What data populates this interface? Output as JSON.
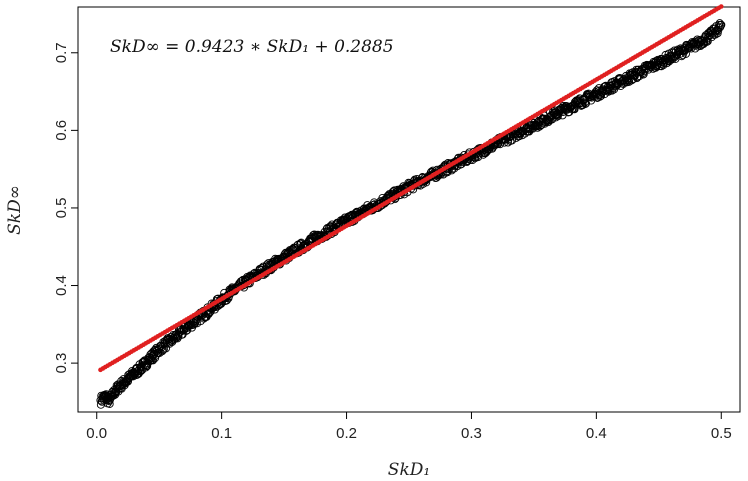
{
  "chart_data": {
    "type": "scatter",
    "title": "",
    "xlabel": "SkD₁",
    "ylabel": "SkD∞",
    "xlim": [
      -0.015,
      0.515
    ],
    "ylim": [
      0.237,
      0.759
    ],
    "x_ticks": [
      "0.0",
      "0.1",
      "0.2",
      "0.3",
      "0.4",
      "0.5"
    ],
    "y_ticks": [
      "0.3",
      "0.4",
      "0.5",
      "0.6",
      "0.7"
    ],
    "annotation": "SkD∞ = 0.9423 ∗ SkD₁ + 0.2885",
    "grid": false,
    "legend": "none",
    "series": [
      {
        "marker": "open-circle",
        "color": "#000000",
        "points": [
          [
            0.003,
            0.252
          ],
          [
            0.007,
            0.257
          ],
          [
            0.01,
            0.251
          ],
          [
            0.014,
            0.262
          ],
          [
            0.018,
            0.27
          ],
          [
            0.022,
            0.275
          ],
          [
            0.026,
            0.281
          ],
          [
            0.03,
            0.287
          ],
          [
            0.034,
            0.292
          ],
          [
            0.038,
            0.298
          ],
          [
            0.042,
            0.305
          ],
          [
            0.046,
            0.311
          ],
          [
            0.05,
            0.318
          ],
          [
            0.055,
            0.324
          ],
          [
            0.06,
            0.33
          ],
          [
            0.065,
            0.336
          ],
          [
            0.07,
            0.343
          ],
          [
            0.075,
            0.35
          ],
          [
            0.08,
            0.356
          ],
          [
            0.085,
            0.362
          ],
          [
            0.09,
            0.368
          ],
          [
            0.095,
            0.375
          ],
          [
            0.1,
            0.382
          ],
          [
            0.105,
            0.388
          ],
          [
            0.11,
            0.394
          ],
          [
            0.115,
            0.399
          ],
          [
            0.12,
            0.405
          ],
          [
            0.125,
            0.41
          ],
          [
            0.13,
            0.416
          ],
          [
            0.135,
            0.421
          ],
          [
            0.14,
            0.426
          ],
          [
            0.145,
            0.431
          ],
          [
            0.15,
            0.436
          ],
          [
            0.155,
            0.441
          ],
          [
            0.16,
            0.446
          ],
          [
            0.165,
            0.451
          ],
          [
            0.17,
            0.456
          ],
          [
            0.175,
            0.461
          ],
          [
            0.18,
            0.465
          ],
          [
            0.185,
            0.47
          ],
          [
            0.19,
            0.474
          ],
          [
            0.195,
            0.479
          ],
          [
            0.2,
            0.483
          ],
          [
            0.205,
            0.488
          ],
          [
            0.21,
            0.492
          ],
          [
            0.215,
            0.497
          ],
          [
            0.22,
            0.501
          ],
          [
            0.225,
            0.505
          ],
          [
            0.23,
            0.51
          ],
          [
            0.235,
            0.514
          ],
          [
            0.24,
            0.518
          ],
          [
            0.245,
            0.522
          ],
          [
            0.25,
            0.527
          ],
          [
            0.255,
            0.531
          ],
          [
            0.26,
            0.535
          ],
          [
            0.265,
            0.539
          ],
          [
            0.27,
            0.543
          ],
          [
            0.275,
            0.547
          ],
          [
            0.28,
            0.551
          ],
          [
            0.285,
            0.555
          ],
          [
            0.29,
            0.559
          ],
          [
            0.295,
            0.563
          ],
          [
            0.3,
            0.567
          ],
          [
            0.305,
            0.571
          ],
          [
            0.31,
            0.575
          ],
          [
            0.315,
            0.579
          ],
          [
            0.32,
            0.583
          ],
          [
            0.325,
            0.587
          ],
          [
            0.33,
            0.591
          ],
          [
            0.335,
            0.595
          ],
          [
            0.34,
            0.599
          ],
          [
            0.345,
            0.603
          ],
          [
            0.35,
            0.607
          ],
          [
            0.355,
            0.611
          ],
          [
            0.36,
            0.615
          ],
          [
            0.365,
            0.619
          ],
          [
            0.37,
            0.623
          ],
          [
            0.375,
            0.627
          ],
          [
            0.38,
            0.631
          ],
          [
            0.385,
            0.635
          ],
          [
            0.39,
            0.639
          ],
          [
            0.395,
            0.643
          ],
          [
            0.4,
            0.647
          ],
          [
            0.405,
            0.651
          ],
          [
            0.41,
            0.655
          ],
          [
            0.415,
            0.659
          ],
          [
            0.42,
            0.663
          ],
          [
            0.425,
            0.667
          ],
          [
            0.43,
            0.671
          ],
          [
            0.435,
            0.675
          ],
          [
            0.44,
            0.679
          ],
          [
            0.445,
            0.683
          ],
          [
            0.45,
            0.687
          ],
          [
            0.455,
            0.691
          ],
          [
            0.46,
            0.695
          ],
          [
            0.465,
            0.699
          ],
          [
            0.47,
            0.703
          ],
          [
            0.475,
            0.707
          ],
          [
            0.48,
            0.711
          ],
          [
            0.485,
            0.716
          ],
          [
            0.49,
            0.721
          ],
          [
            0.495,
            0.727
          ],
          [
            0.5,
            0.736
          ]
        ]
      },
      {
        "marker": "filled-dot",
        "color": "#e02020",
        "x_range": [
          0.003,
          0.5
        ],
        "slope": 0.9423,
        "intercept": 0.2885
      }
    ]
  }
}
